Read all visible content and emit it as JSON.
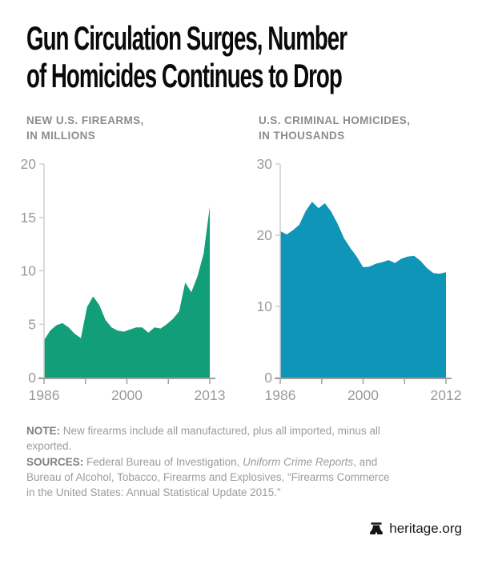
{
  "title": {
    "line1": "Gun Circulation Surges, Number",
    "line2": "of Homicides Continues to Drop"
  },
  "chart_data": [
    {
      "type": "area",
      "id": "new-us-firearms",
      "title": "NEW U.S. FIREARMS, IN MILLIONS",
      "title_lines": [
        "NEW U.S. FIREARMS,",
        "IN MILLIONS"
      ],
      "color": "#119e78",
      "x": [
        1986,
        1987,
        1988,
        1989,
        1990,
        1991,
        1992,
        1993,
        1994,
        1995,
        1996,
        1997,
        1998,
        1999,
        2000,
        2001,
        2002,
        2003,
        2004,
        2005,
        2006,
        2007,
        2008,
        2009,
        2010,
        2011,
        2012,
        2013
      ],
      "values": [
        3.5,
        4.4,
        4.9,
        5.1,
        4.7,
        4.1,
        3.7,
        6.6,
        7.6,
        6.8,
        5.4,
        4.7,
        4.4,
        4.3,
        4.5,
        4.7,
        4.7,
        4.2,
        4.7,
        4.6,
        5.0,
        5.5,
        6.2,
        8.9,
        8.0,
        9.5,
        11.6,
        16.0
      ],
      "ylim": [
        0,
        20
      ],
      "yticks": [
        0,
        5,
        10,
        15,
        20
      ],
      "xtick_labels": [
        "1986",
        "2000",
        "2013"
      ],
      "grid": false,
      "legend": "none"
    },
    {
      "type": "area",
      "id": "us-criminal-homicides",
      "title": "U.S. CRIMINAL HOMICIDES, IN THOUSANDS",
      "title_lines": [
        "U.S. CRIMINAL HOMICIDES,",
        "IN THOUSANDS"
      ],
      "color": "#0f95b7",
      "x": [
        1986,
        1987,
        1988,
        1989,
        1990,
        1991,
        1992,
        1993,
        1994,
        1995,
        1996,
        1997,
        1998,
        1999,
        2000,
        2001,
        2002,
        2003,
        2004,
        2005,
        2006,
        2007,
        2008,
        2009,
        2010,
        2011,
        2012
      ],
      "values": [
        20.6,
        20.1,
        20.7,
        21.5,
        23.4,
        24.7,
        23.8,
        24.5,
        23.3,
        21.6,
        19.6,
        18.2,
        17.0,
        15.5,
        15.6,
        16.0,
        16.2,
        16.5,
        16.1,
        16.7,
        17.0,
        17.1,
        16.4,
        15.4,
        14.7,
        14.6,
        14.8
      ],
      "ylim": [
        0,
        30
      ],
      "yticks": [
        0,
        10,
        20,
        30
      ],
      "xtick_labels": [
        "1986",
        "2000",
        "2012"
      ],
      "grid": false,
      "legend": "none"
    }
  ],
  "notes": {
    "note_label": "NOTE:",
    "note_text": "New firearms include all manufactured, plus all imported, minus all exported.",
    "sources_label": "SOURCES:",
    "sources_pre": "Federal Bureau of Investigation, ",
    "sources_italic": "Uniform Crime Reports",
    "sources_post": ", and Bureau of Alcohol, Tobacco, Firearms and Explosives, “Firearms Commerce in the United States: Annual Statistical Update 2015.”"
  },
  "footer": {
    "brand": "heritage.org"
  },
  "colors": {
    "firearms_green": "#119e78",
    "homicides_blue": "#0f95b7",
    "axis_label_gray": "#9b9b9b",
    "axis_line_gray": "#a2a2a2",
    "title_black": "#0a0a0a"
  }
}
